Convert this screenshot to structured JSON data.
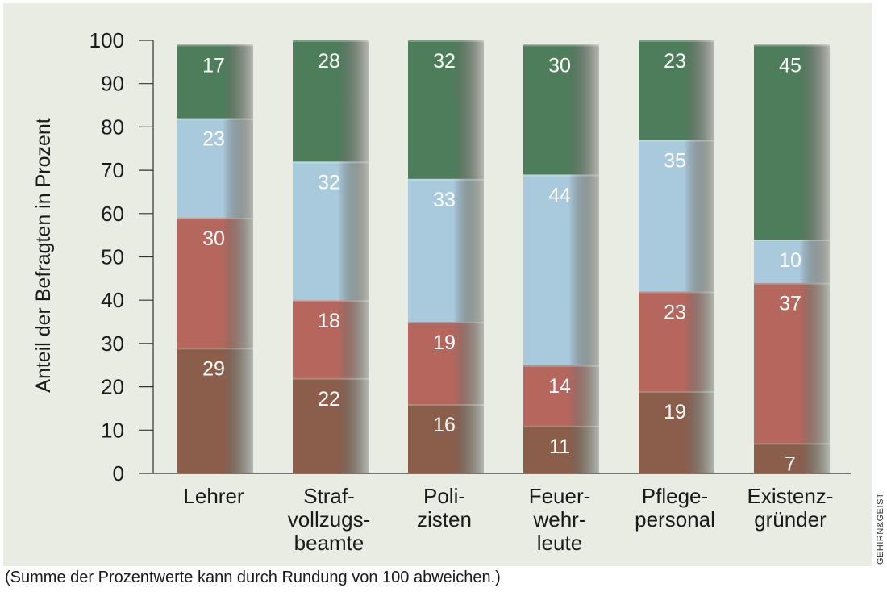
{
  "chart_data": {
    "type": "bar",
    "stacked": true,
    "ylabel": "Anteil der Befragten in Prozent",
    "ylim": [
      0,
      100
    ],
    "yticks": [
      0,
      10,
      20,
      30,
      40,
      50,
      60,
      70,
      80,
      90,
      100
    ],
    "grid": false,
    "categories": [
      [
        "Lehrer"
      ],
      [
        "Straf-",
        "vollzugs-",
        "beamte"
      ],
      [
        "Poli-",
        "zisten"
      ],
      [
        "Feuer-",
        "wehr-",
        "leute"
      ],
      [
        "Pflege-",
        "personal"
      ],
      [
        "Existenz-",
        "gründer"
      ]
    ],
    "series": [
      {
        "color": "#8a5e4a",
        "values": [
          29,
          22,
          16,
          11,
          19,
          7
        ]
      },
      {
        "color": "#b5675d",
        "values": [
          30,
          18,
          19,
          14,
          23,
          37
        ]
      },
      {
        "color": "#a9c9dc",
        "values": [
          23,
          32,
          33,
          44,
          35,
          10
        ]
      },
      {
        "color": "#4e7d5c",
        "values": [
          17,
          28,
          32,
          30,
          23,
          45
        ]
      }
    ]
  },
  "footnote": "(Summe der Prozentwerte kann durch Rundung von 100 abweichen.)",
  "credit": "GEHIRN&GEIST"
}
